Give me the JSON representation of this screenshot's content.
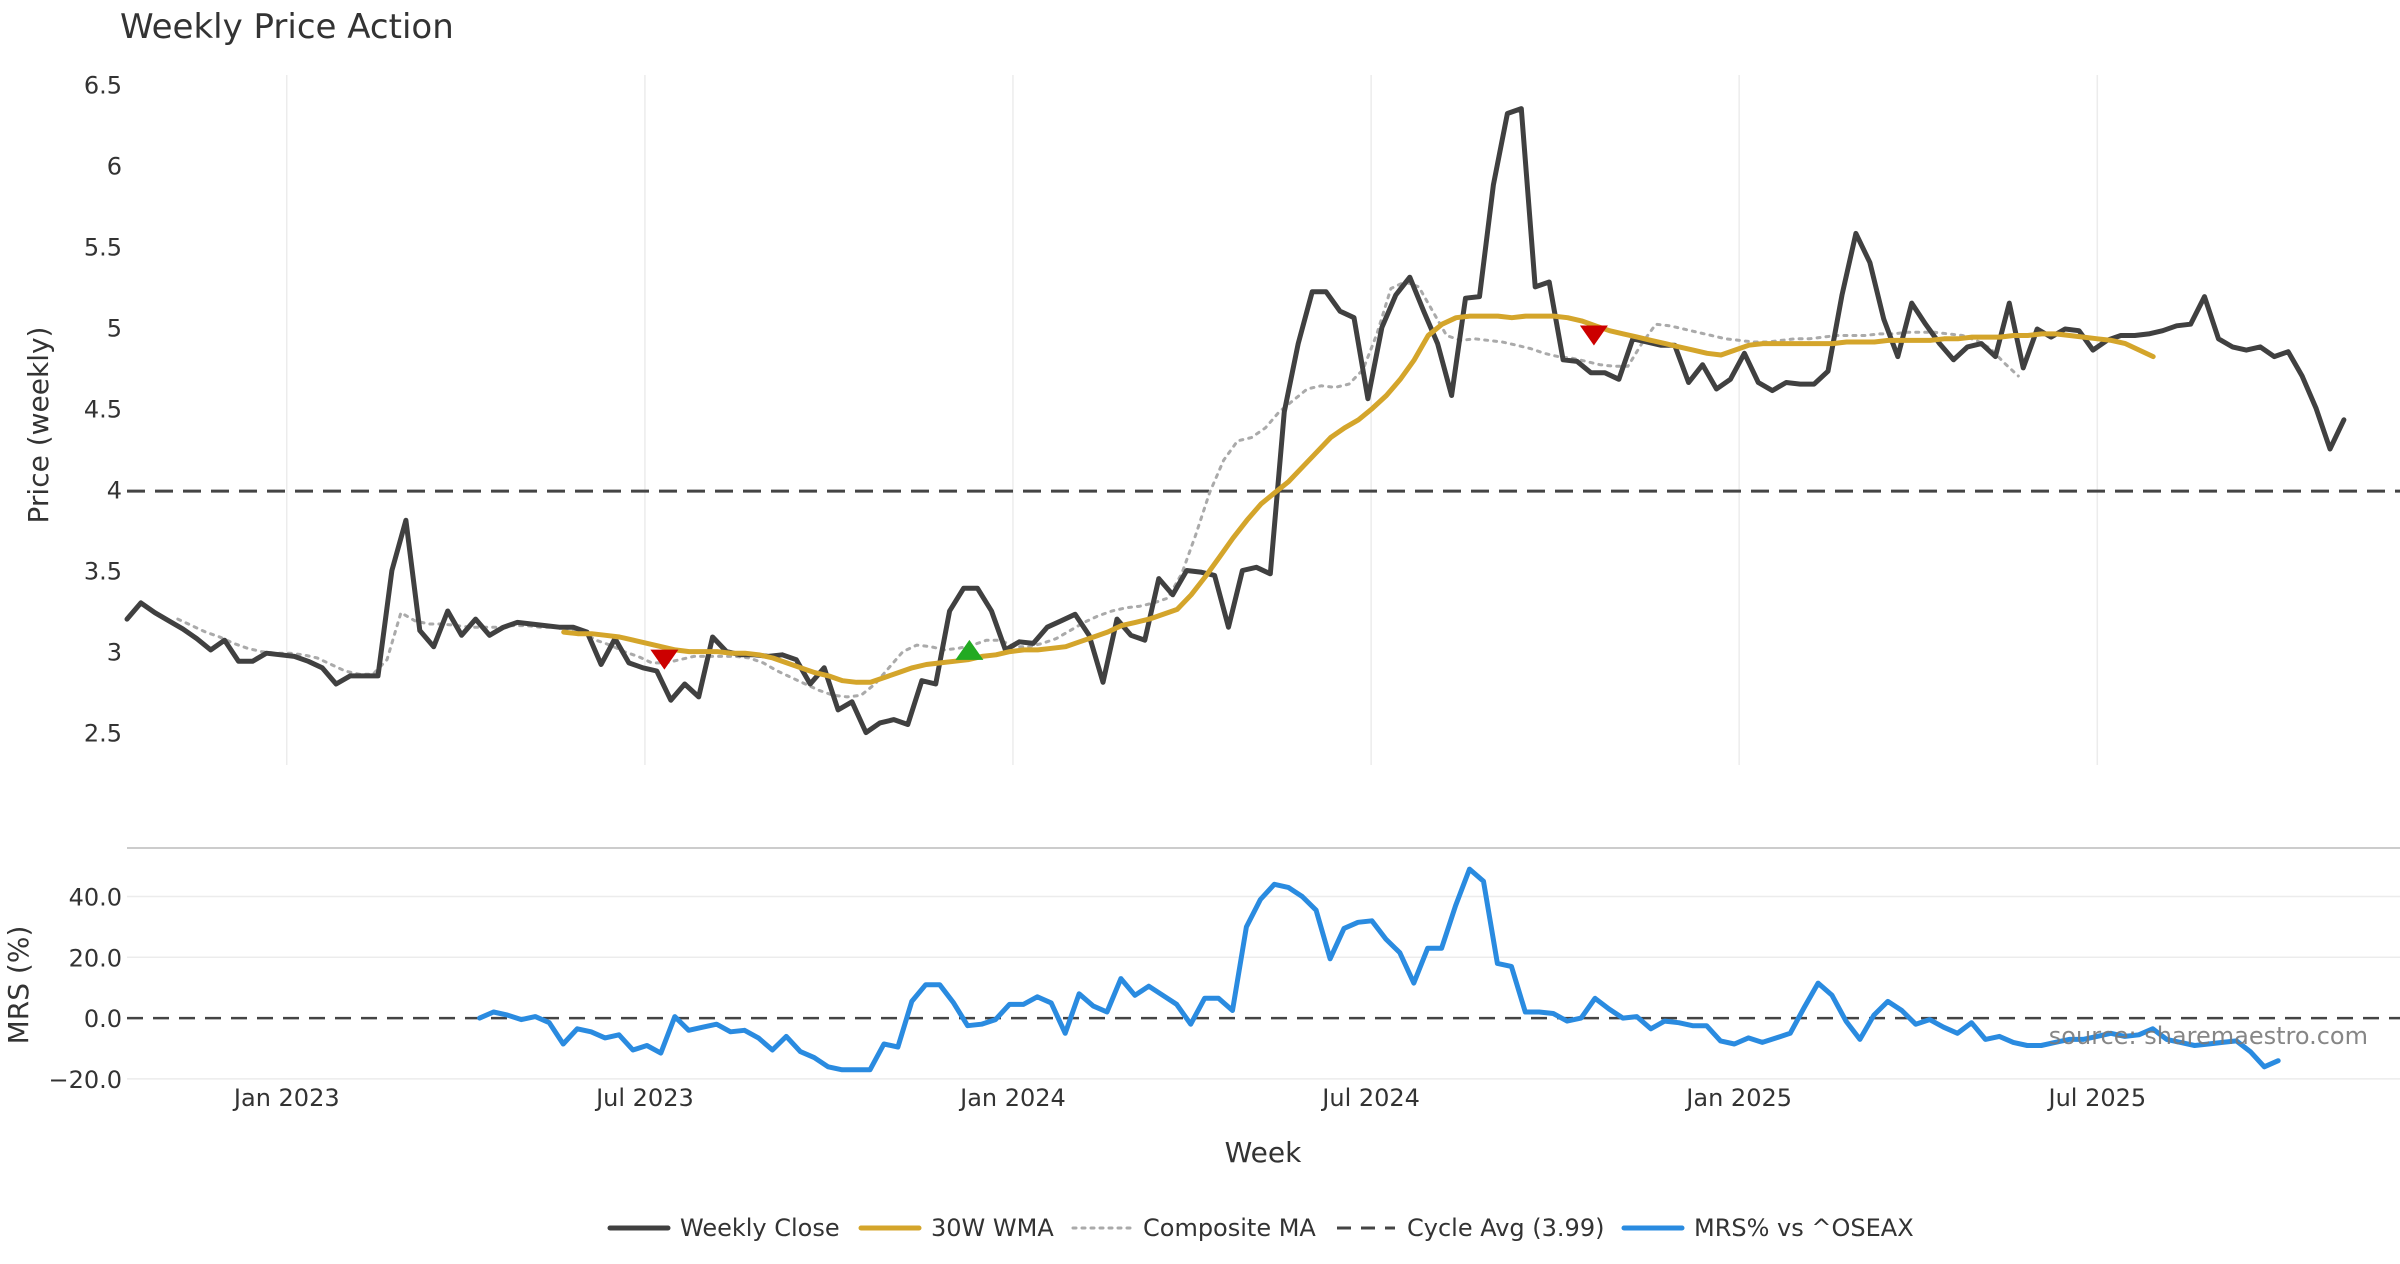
{
  "chart_data": {
    "type": "line",
    "title": "Weekly Price Action",
    "xlabel": "Week",
    "watermark": "source: sharemaestro.com",
    "x_range": [
      2022.78,
      2025.91
    ],
    "x_ticks": [
      {
        "label": "Jan 2023",
        "t": 2023.0
      },
      {
        "label": "Jul 2023",
        "t": 2023.4932
      },
      {
        "label": "Jan 2024",
        "t": 2024.0
      },
      {
        "label": "Jul 2024",
        "t": 2024.4932
      },
      {
        "label": "Jan 2025",
        "t": 2025.0
      },
      {
        "label": "Jul 2025",
        "t": 2025.4932
      }
    ],
    "price_panel": {
      "ylabel": "Price (weekly)",
      "ylim": [
        2.3,
        6.65
      ],
      "yticks": [
        "2.5",
        "3",
        "3.5",
        "4",
        "4.5",
        "5",
        "5.5",
        "6",
        "6.5"
      ],
      "grid": "vertical",
      "series": [
        {
          "name": "Weekly Close",
          "color": "#404040",
          "style": "solid",
          "t0": 2022.78,
          "dt": 0.0192,
          "values": [
            3.2,
            3.3,
            3.24,
            3.19,
            3.14,
            3.08,
            3.01,
            3.07,
            2.94,
            2.94,
            2.99,
            2.98,
            2.97,
            2.94,
            2.9,
            2.8,
            2.85,
            2.85,
            2.85,
            3.5,
            3.81,
            3.13,
            3.03,
            3.25,
            3.1,
            3.2,
            3.1,
            3.15,
            3.18,
            3.17,
            3.16,
            3.15,
            3.15,
            3.12,
            2.92,
            3.08,
            2.93,
            2.9,
            2.88,
            2.7,
            2.8,
            2.72,
            3.09,
            3.0,
            2.98,
            2.98,
            2.97,
            2.98,
            2.95,
            2.8,
            2.9,
            2.64,
            2.69,
            2.5,
            2.56,
            2.58,
            2.55,
            2.82,
            2.8,
            3.25,
            3.39,
            3.39,
            3.25,
            3.01,
            3.06,
            3.05,
            3.15,
            3.19,
            3.23,
            3.1,
            2.81,
            3.2,
            3.1,
            3.07,
            3.45,
            3.35,
            3.5,
            3.49,
            3.47,
            3.15,
            3.5,
            3.52,
            3.48,
            4.48,
            4.9,
            5.22,
            5.22,
            5.1,
            5.06,
            4.56,
            5.0,
            5.2,
            5.31,
            5.1,
            4.9,
            4.58,
            5.18,
            5.19,
            5.88,
            6.32,
            6.35,
            5.25,
            5.28,
            4.8,
            4.79,
            4.72,
            4.72,
            4.68,
            4.93,
            4.91,
            4.89,
            4.89,
            4.66,
            4.77,
            4.62,
            4.68,
            4.84,
            4.66,
            4.61,
            4.66,
            4.65,
            4.65,
            4.73,
            5.2,
            5.58,
            5.4,
            5.05,
            4.82,
            5.15,
            5.02,
            4.9,
            4.8,
            4.88,
            4.9,
            4.82,
            5.15,
            4.75,
            4.99,
            4.94,
            4.99,
            4.98,
            4.86,
            4.92,
            4.95,
            4.95,
            4.96,
            4.98,
            5.01,
            5.02,
            5.19,
            4.93,
            4.88,
            4.86,
            4.88,
            4.82,
            4.85,
            4.7,
            4.5,
            4.25,
            4.43
          ]
        },
        {
          "name": "30W WMA",
          "color": "#d4a52b",
          "style": "solid",
          "t0": 2023.3814,
          "dt": 0.0192,
          "values": [
            3.12,
            3.11,
            3.11,
            3.1,
            3.09,
            3.07,
            3.05,
            3.03,
            3.01,
            3.0,
            3.0,
            3.0,
            2.99,
            2.99,
            2.98,
            2.96,
            2.93,
            2.9,
            2.87,
            2.85,
            2.82,
            2.81,
            2.81,
            2.84,
            2.87,
            2.9,
            2.92,
            2.93,
            2.94,
            2.95,
            2.97,
            2.98,
            3.0,
            3.01,
            3.01,
            3.02,
            3.03,
            3.06,
            3.09,
            3.12,
            3.16,
            3.18,
            3.2,
            3.23,
            3.26,
            3.35,
            3.46,
            3.58,
            3.7,
            3.81,
            3.91,
            3.98,
            4.05,
            4.14,
            4.23,
            4.32,
            4.38,
            4.43,
            4.5,
            4.58,
            4.68,
            4.8,
            4.95,
            5.02,
            5.06,
            5.07,
            5.07,
            5.07,
            5.06,
            5.07,
            5.07,
            5.07,
            5.06,
            5.04,
            5.01,
            4.98,
            4.96,
            4.94,
            4.92,
            4.9,
            4.88,
            4.86,
            4.84,
            4.83,
            4.86,
            4.89,
            4.9,
            4.9,
            4.9,
            4.9,
            4.9,
            4.9,
            4.91,
            4.91,
            4.91,
            4.92,
            4.92,
            4.92,
            4.92,
            4.93,
            4.93,
            4.94,
            4.94,
            4.94,
            4.95,
            4.95,
            4.96,
            4.96,
            4.95,
            4.94,
            4.93,
            4.92,
            4.9,
            4.86,
            4.82
          ]
        },
        {
          "name": "Composite MA",
          "color": "#aaaaaa",
          "style": "dotted",
          "t0": 2022.85,
          "dt": 0.0192,
          "values": [
            3.2,
            3.16,
            3.12,
            3.09,
            3.05,
            3.02,
            3.0,
            2.99,
            2.99,
            2.98,
            2.96,
            2.92,
            2.88,
            2.86,
            2.86,
            2.95,
            3.24,
            3.19,
            3.17,
            3.17,
            3.16,
            3.15,
            3.15,
            3.15,
            3.16,
            3.16,
            3.15,
            3.15,
            3.14,
            3.12,
            3.07,
            3.04,
            3.0,
            2.97,
            2.93,
            2.93,
            2.95,
            2.97,
            2.97,
            2.97,
            2.97,
            2.96,
            2.93,
            2.88,
            2.84,
            2.8,
            2.76,
            2.73,
            2.72,
            2.73,
            2.8,
            2.9,
            3.0,
            3.04,
            3.03,
            3.01,
            3.02,
            3.04,
            3.07,
            3.07,
            3.03,
            3.03,
            3.05,
            3.08,
            3.13,
            3.18,
            3.22,
            3.25,
            3.27,
            3.28,
            3.3,
            3.33,
            3.48,
            3.72,
            3.98,
            4.18,
            4.3,
            4.32,
            4.38,
            4.48,
            4.55,
            4.62,
            4.64,
            4.63,
            4.65,
            4.74,
            4.96,
            5.24,
            5.28,
            5.25,
            5.1,
            4.95,
            4.92,
            4.93,
            4.92,
            4.91,
            4.89,
            4.87,
            4.84,
            4.82,
            4.81,
            4.79,
            4.77,
            4.76,
            4.76,
            4.9,
            5.02,
            5.01,
            4.99,
            4.97,
            4.95,
            4.93,
            4.92,
            4.91,
            4.91,
            4.92,
            4.93,
            4.93,
            4.94,
            4.95,
            4.95,
            4.95,
            4.96,
            4.96,
            4.97,
            4.97,
            4.97,
            4.96,
            4.95,
            4.92,
            4.87,
            4.78,
            4.7
          ]
        },
        {
          "name": "Cycle Avg (3.99)",
          "color": "#444444",
          "style": "dashed",
          "value": 3.99
        }
      ],
      "markers": [
        {
          "shape": "triangle-down",
          "color": "#cc0000",
          "t": 2023.52,
          "y": 2.95
        },
        {
          "shape": "triangle-up",
          "color": "#22aa22",
          "t": 2023.94,
          "y": 3.01
        },
        {
          "shape": "triangle-down",
          "color": "#cc0000",
          "t": 2024.8,
          "y": 4.95
        }
      ]
    },
    "mrs_panel": {
      "ylabel": "MRS (%)",
      "ylim": [
        -22,
        52
      ],
      "yticks": [
        "40.0",
        "20.0",
        "0.0",
        "−20.0"
      ],
      "ytick_values": [
        40,
        20,
        0,
        -20
      ],
      "zero_line": {
        "value": 0,
        "style": "dashed",
        "color": "#444444"
      },
      "series": [
        {
          "name": "MRS% vs ^OSEAX",
          "color": "#2a8be0",
          "style": "solid",
          "t0": 2023.2655,
          "dt": 0.0192,
          "values": [
            0,
            2,
            1,
            -0.5,
            0.5,
            -1.5,
            -8.5,
            -3.5,
            -4.5,
            -6.5,
            -5.5,
            -10.5,
            -9,
            -11.5,
            0.5,
            -4,
            -3,
            -2,
            -4.5,
            -4,
            -6.5,
            -10.5,
            -6,
            -11,
            -13,
            -16,
            -17,
            -17,
            -17,
            -8.5,
            -9.5,
            5.5,
            11,
            11,
            5,
            -2.5,
            -2,
            -0.5,
            4.5,
            4.5,
            7,
            5,
            -5,
            8,
            4,
            2,
            13,
            7.5,
            10.5,
            7.5,
            4.5,
            -2,
            6.5,
            6.5,
            2.5,
            30,
            39,
            44,
            43,
            40,
            35.5,
            19.5,
            29.5,
            31.5,
            32,
            26,
            21.5,
            11.5,
            23,
            23,
            37,
            49,
            45,
            18,
            17,
            2,
            2,
            1.5,
            -1,
            0,
            6.5,
            3,
            0,
            0.5,
            -3.5,
            -1,
            -1.5,
            -2.5,
            -2.5,
            -7.5,
            -8.5,
            -6.5,
            -8,
            -6.5,
            -5,
            3.5,
            11.5,
            7.5,
            -1,
            -7,
            1,
            5.5,
            2.5,
            -2,
            -0.5,
            -3,
            -5,
            -1.5,
            -7,
            -6,
            -8,
            -9,
            -9,
            -8,
            -7,
            -7,
            -6,
            -5,
            -6,
            -5.5,
            -3.5,
            -7,
            -8,
            -9,
            -8.5,
            -8,
            -7.5,
            -11,
            -16,
            -14
          ]
        }
      ]
    },
    "legend": {
      "placement": "bottom-center",
      "entries": [
        "Weekly Close",
        "30W WMA",
        "Composite MA",
        "Cycle Avg (3.99)",
        "MRS% vs ^OSEAX"
      ]
    }
  }
}
